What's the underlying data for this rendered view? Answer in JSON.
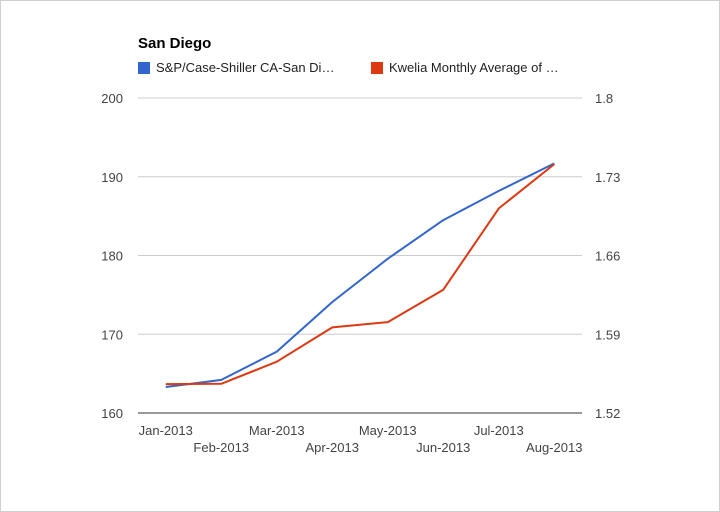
{
  "chart_data": {
    "type": "line",
    "title": "San Diego",
    "categories": [
      "Jan-2013",
      "Feb-2013",
      "Mar-2013",
      "Apr-2013",
      "May-2013",
      "Jun-2013",
      "Jul-2013",
      "Aug-2013"
    ],
    "series": [
      {
        "name": "S&P/Case-Shiller CA-San Di…",
        "axis": "left",
        "color": "#3366cc",
        "values": [
          163.3,
          164.2,
          167.8,
          174.1,
          179.6,
          184.5,
          188.2,
          191.7
        ]
      },
      {
        "name": "Kwelia Monthly Average of …",
        "axis": "right",
        "color": "#dc3912",
        "values": [
          1.5457,
          1.546,
          1.5656,
          1.5961,
          1.6008,
          1.6296,
          1.7019,
          1.7412
        ]
      }
    ],
    "y_left": {
      "min": 160,
      "max": 200,
      "ticks": [
        "160",
        "170",
        "180",
        "190",
        "200"
      ]
    },
    "y_right": {
      "min": 1.52,
      "max": 1.8,
      "ticks": [
        "1.52",
        "1.59",
        "1.66",
        "1.73",
        "1.8"
      ]
    },
    "grid": true,
    "legend_position": "top"
  }
}
